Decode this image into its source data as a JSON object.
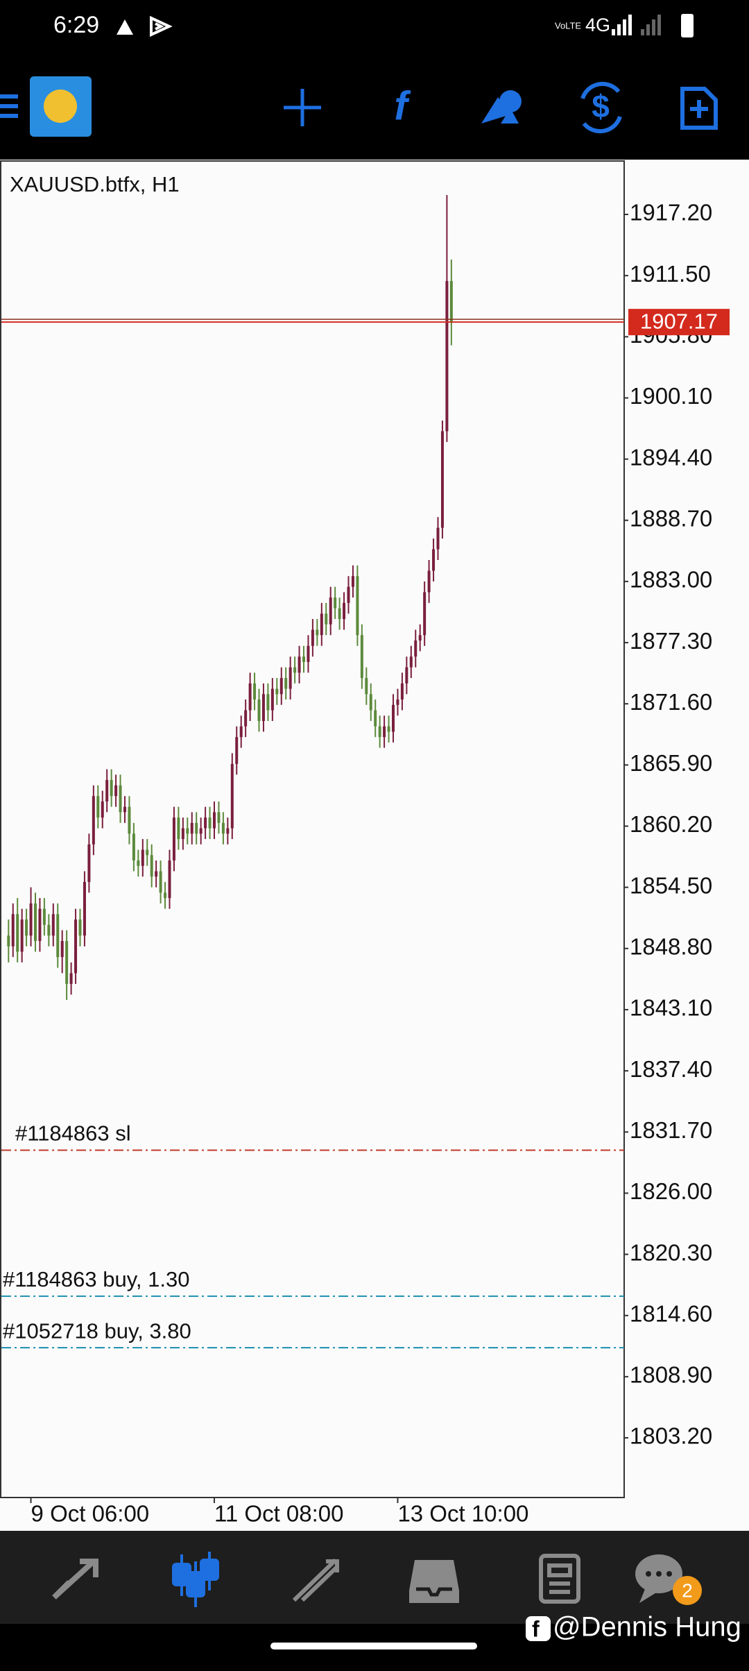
{
  "status_bar": {
    "time": "6:29",
    "network": "4G"
  },
  "chart_data": {
    "type": "candlestick",
    "title": "XAUUSD.btfx, H1",
    "up_color": "#7a1f3d",
    "down_color": "#5c8a3c",
    "ylim": [
      1797.64,
      1922.18
    ],
    "yticks": [
      {
        "value": 1917.2,
        "label": "1917.20"
      },
      {
        "value": 1911.5,
        "label": "1911.50"
      },
      {
        "value": 1905.8,
        "label": "1905.80"
      },
      {
        "value": 1900.1,
        "label": "1900.10"
      },
      {
        "value": 1894.4,
        "label": "1894.40"
      },
      {
        "value": 1888.7,
        "label": "1888.70"
      },
      {
        "value": 1883,
        "label": "1883.00"
      },
      {
        "value": 1877.3,
        "label": "1877.30"
      },
      {
        "value": 1871.6,
        "label": "1871.60"
      },
      {
        "value": 1865.9,
        "label": "1865.90"
      },
      {
        "value": 1860.2,
        "label": "1860.20"
      },
      {
        "value": 1854.5,
        "label": "1854.50"
      },
      {
        "value": 1848.8,
        "label": "1848.80"
      },
      {
        "value": 1843.1,
        "label": "1843.10"
      },
      {
        "value": 1837.4,
        "label": "1837.40"
      },
      {
        "value": 1831.7,
        "label": "1831.70"
      },
      {
        "value": 1826,
        "label": "1826.00"
      },
      {
        "value": 1820.3,
        "label": "1820.30"
      },
      {
        "value": 1814.6,
        "label": "1814.60"
      },
      {
        "value": 1808.9,
        "label": "1808.90"
      },
      {
        "value": 1803.2,
        "label": "1803.20"
      }
    ],
    "current_price": 1907.17,
    "current_price_color": "#d42a1e",
    "orders": [
      {
        "label": "#1184863 sl",
        "value": 1830.0,
        "color": "#c0392b"
      },
      {
        "label": "#1184863 buy, 1.30",
        "value": 1816.4,
        "color": "#1a8fb0"
      },
      {
        "label": "#1052718 buy, 3.80",
        "value": 1811.6,
        "color": "#1a8fb0"
      }
    ],
    "categories": [
      null,
      null,
      null,
      null,
      null,
      "9 Oct 06:00",
      null,
      null,
      null,
      null,
      null,
      null,
      null,
      null,
      null,
      null,
      null,
      null,
      null,
      null,
      null,
      null,
      null,
      null,
      null,
      null,
      null,
      null,
      null,
      null,
      null,
      null,
      null,
      null,
      null,
      null,
      null,
      null,
      null,
      null,
      null,
      null,
      null,
      null,
      null,
      null,
      "11 Oct 08:00",
      null,
      null,
      null,
      null,
      null,
      null,
      null,
      null,
      null,
      null,
      null,
      null,
      null,
      null,
      null,
      null,
      null,
      null,
      null,
      null,
      null,
      null,
      null,
      null,
      null,
      null,
      null,
      null,
      null,
      null,
      null,
      null,
      null,
      null,
      null,
      null,
      null,
      null,
      null,
      null,
      "13 Oct 10:00",
      null,
      null,
      null,
      null,
      null,
      null,
      null,
      null,
      null,
      null,
      null,
      null
    ],
    "candles": [
      [
        1850.0,
        1851.5,
        1847.5,
        1849.0
      ],
      [
        1849.0,
        1853.0,
        1848.0,
        1852.0
      ],
      [
        1852.0,
        1853.5,
        1847.5,
        1848.5
      ],
      [
        1848.5,
        1852.5,
        1847.5,
        1851.5
      ],
      [
        1851.5,
        1852.5,
        1849.0,
        1850.0
      ],
      [
        1850.0,
        1854.5,
        1849.0,
        1853.0
      ],
      [
        1853.0,
        1854.0,
        1848.5,
        1849.5
      ],
      [
        1849.5,
        1853.5,
        1848.5,
        1852.5
      ],
      [
        1852.5,
        1853.5,
        1850.0,
        1851.0
      ],
      [
        1851.0,
        1852.0,
        1849.0,
        1850.0
      ],
      [
        1850.0,
        1853.0,
        1849.0,
        1852.0
      ],
      [
        1852.0,
        1853.0,
        1847.0,
        1848.0
      ],
      [
        1848.0,
        1850.5,
        1846.5,
        1849.5
      ],
      [
        1849.5,
        1850.5,
        1844.0,
        1845.5
      ],
      [
        1845.5,
        1847.5,
        1844.5,
        1846.5
      ],
      [
        1846.5,
        1852.5,
        1845.5,
        1851.5
      ],
      [
        1851.5,
        1852.5,
        1849.0,
        1850.0
      ],
      [
        1850.0,
        1856.0,
        1849.0,
        1855.0
      ],
      [
        1855.0,
        1859.5,
        1854.0,
        1858.5
      ],
      [
        1858.5,
        1864.0,
        1857.5,
        1863.0
      ],
      [
        1863.0,
        1864.0,
        1860.0,
        1861.0
      ],
      [
        1861.0,
        1863.5,
        1860.0,
        1862.5
      ],
      [
        1862.5,
        1865.5,
        1861.5,
        1864.5
      ],
      [
        1864.5,
        1865.5,
        1862.0,
        1863.0
      ],
      [
        1863.0,
        1865.0,
        1862.0,
        1864.0
      ],
      [
        1864.0,
        1865.0,
        1860.5,
        1861.5
      ],
      [
        1861.5,
        1863.0,
        1860.5,
        1862.0
      ],
      [
        1862.0,
        1863.0,
        1858.5,
        1859.5
      ],
      [
        1859.5,
        1860.5,
        1856.0,
        1857.0
      ],
      [
        1857.0,
        1858.0,
        1855.5,
        1856.5
      ],
      [
        1856.5,
        1859.0,
        1855.5,
        1858.0
      ],
      [
        1858.0,
        1859.0,
        1856.5,
        1857.5
      ],
      [
        1857.5,
        1858.5,
        1854.5,
        1855.5
      ],
      [
        1855.5,
        1857.0,
        1854.5,
        1856.0
      ],
      [
        1856.0,
        1857.0,
        1853.0,
        1854.0
      ],
      [
        1854.0,
        1855.0,
        1852.5,
        1853.5
      ],
      [
        1853.5,
        1858.0,
        1852.5,
        1857.0
      ],
      [
        1857.0,
        1862.0,
        1856.0,
        1861.0
      ],
      [
        1861.0,
        1862.0,
        1858.0,
        1859.0
      ],
      [
        1859.0,
        1861.0,
        1858.0,
        1860.0
      ],
      [
        1860.0,
        1861.0,
        1858.5,
        1859.5
      ],
      [
        1859.5,
        1861.5,
        1858.5,
        1860.5
      ],
      [
        1860.5,
        1861.5,
        1858.5,
        1859.5
      ],
      [
        1859.5,
        1861.0,
        1858.5,
        1860.0
      ],
      [
        1860.0,
        1862.0,
        1859.0,
        1861.0
      ],
      [
        1861.0,
        1862.0,
        1859.0,
        1860.0
      ],
      [
        1860.0,
        1862.5,
        1859.0,
        1861.5
      ],
      [
        1861.5,
        1862.5,
        1859.5,
        1860.5
      ],
      [
        1860.5,
        1861.5,
        1858.5,
        1859.5
      ],
      [
        1859.5,
        1861.0,
        1858.5,
        1860.0
      ],
      [
        1860.0,
        1867.0,
        1859.0,
        1866.0
      ],
      [
        1866.0,
        1869.5,
        1865.0,
        1868.5
      ],
      [
        1868.5,
        1870.5,
        1867.5,
        1869.5
      ],
      [
        1869.5,
        1872.0,
        1868.5,
        1871.0
      ],
      [
        1871.0,
        1874.5,
        1870.0,
        1873.5
      ],
      [
        1873.5,
        1874.5,
        1871.0,
        1872.0
      ],
      [
        1872.0,
        1873.0,
        1869.0,
        1870.0
      ],
      [
        1870.0,
        1873.5,
        1869.0,
        1872.5
      ],
      [
        1872.5,
        1873.5,
        1870.0,
        1871.0
      ],
      [
        1871.0,
        1874.0,
        1870.0,
        1873.0
      ],
      [
        1873.0,
        1874.0,
        1871.5,
        1872.5
      ],
      [
        1872.5,
        1875.0,
        1871.5,
        1874.0
      ],
      [
        1874.0,
        1875.0,
        1872.0,
        1873.0
      ],
      [
        1873.0,
        1876.0,
        1872.0,
        1875.0
      ],
      [
        1875.0,
        1876.0,
        1873.5,
        1874.5
      ],
      [
        1874.5,
        1877.0,
        1873.5,
        1876.0
      ],
      [
        1876.0,
        1877.0,
        1874.5,
        1875.5
      ],
      [
        1875.5,
        1878.0,
        1874.5,
        1877.0
      ],
      [
        1877.0,
        1879.5,
        1876.0,
        1878.5
      ],
      [
        1878.5,
        1879.5,
        1877.0,
        1878.0
      ],
      [
        1878.0,
        1881.0,
        1877.0,
        1880.0
      ],
      [
        1880.0,
        1881.0,
        1878.0,
        1879.0
      ],
      [
        1879.0,
        1882.5,
        1878.0,
        1881.5
      ],
      [
        1881.5,
        1882.5,
        1879.5,
        1880.5
      ],
      [
        1880.5,
        1881.5,
        1878.5,
        1879.5
      ],
      [
        1879.5,
        1882.0,
        1878.5,
        1881.0
      ],
      [
        1881.0,
        1883.5,
        1880.0,
        1882.5
      ],
      [
        1882.5,
        1884.5,
        1881.5,
        1883.5
      ],
      [
        1883.5,
        1884.5,
        1877.0,
        1878.0
      ],
      [
        1878.0,
        1879.0,
        1873.0,
        1874.0
      ],
      [
        1874.0,
        1875.0,
        1871.5,
        1872.5
      ],
      [
        1872.5,
        1873.5,
        1870.0,
        1871.0
      ],
      [
        1871.0,
        1872.0,
        1868.5,
        1869.5
      ],
      [
        1869.5,
        1870.5,
        1867.5,
        1868.5
      ],
      [
        1868.5,
        1870.5,
        1867.5,
        1869.5
      ],
      [
        1869.5,
        1870.5,
        1868.0,
        1869.0
      ],
      [
        1869.0,
        1872.5,
        1868.0,
        1871.5
      ],
      [
        1871.5,
        1873.0,
        1870.5,
        1872.0
      ],
      [
        1872.0,
        1874.5,
        1871.0,
        1873.5
      ],
      [
        1873.5,
        1876.0,
        1872.5,
        1875.0
      ],
      [
        1875.0,
        1877.0,
        1874.0,
        1876.0
      ],
      [
        1876.0,
        1878.5,
        1875.0,
        1877.5
      ],
      [
        1877.5,
        1879.0,
        1876.5,
        1878.0
      ],
      [
        1878.0,
        1883.0,
        1877.0,
        1882.0
      ],
      [
        1882.0,
        1885.0,
        1881.0,
        1884.0
      ],
      [
        1884.0,
        1887.0,
        1883.0,
        1886.0
      ],
      [
        1886.0,
        1889.0,
        1885.0,
        1888.0
      ],
      [
        1888.0,
        1898.0,
        1887.0,
        1897.0
      ],
      [
        1897.0,
        1919.0,
        1896.0,
        1911.0
      ],
      [
        1911.0,
        1913.0,
        1905.0,
        1907.17
      ]
    ]
  },
  "bottom_nav": {
    "badge": 2
  },
  "watermark": "@Dennis Hung"
}
